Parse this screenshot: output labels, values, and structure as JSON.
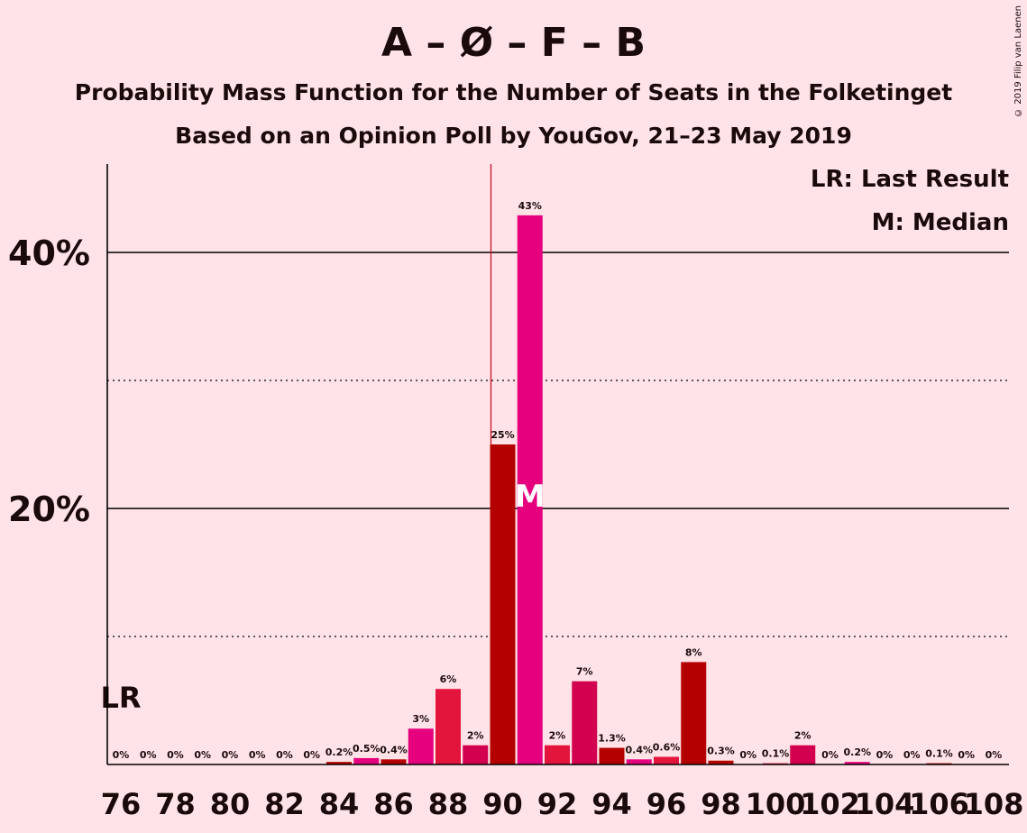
{
  "header": {
    "title": "A – Ø – F – B",
    "subtitle1": "Probability Mass Function for the Number of Seats in the Folketinget",
    "subtitle2": "Based on an Opinion Poll by YouGov, 21–23 May 2019",
    "copyright": "© 2019 Filip van Laenen"
  },
  "legend": {
    "lr": "LR: Last Result",
    "m": "M: Median"
  },
  "markers": {
    "last_result_label": "LR",
    "median_label": "M"
  },
  "colors": {
    "background": "#FFE3E6",
    "dark_red": "#B50000",
    "magenta": "#E6007E",
    "crimson": "#E4153D",
    "rose": "#D2004F",
    "axis": "#000000",
    "median_line": "#C8102E"
  },
  "chart_data": {
    "type": "bar",
    "title": "A – Ø – F – B",
    "xlabel": "",
    "ylabel": "",
    "ylim": [
      0,
      47
    ],
    "yticks": [
      20,
      40
    ],
    "ytick_labels": [
      "20%",
      "40%"
    ],
    "dotted_gridlines": [
      10,
      30
    ],
    "x_tick_labels": [
      "76",
      "78",
      "80",
      "82",
      "84",
      "86",
      "88",
      "90",
      "92",
      "94",
      "96",
      "98",
      "100",
      "102",
      "104",
      "106",
      "108"
    ],
    "x": [
      76,
      77,
      78,
      79,
      80,
      81,
      82,
      83,
      84,
      85,
      86,
      87,
      88,
      89,
      90,
      91,
      92,
      93,
      94,
      95,
      96,
      97,
      98,
      99,
      100,
      101,
      102,
      103,
      104,
      105,
      106,
      107,
      108
    ],
    "values": [
      0,
      0,
      0,
      0,
      0,
      0,
      0,
      0,
      0.2,
      0.5,
      0.4,
      2.8,
      5.9,
      1.5,
      25.0,
      42.9,
      1.5,
      6.5,
      1.3,
      0.4,
      0.6,
      8.0,
      0.3,
      0,
      0.1,
      1.5,
      0,
      0.2,
      0,
      0,
      0.1,
      0,
      0
    ],
    "labels": [
      "0%",
      "0%",
      "0%",
      "0%",
      "0%",
      "0%",
      "0%",
      "0%",
      "0.2%",
      "0.5%",
      "0.4%",
      "3%",
      "6%",
      "2%",
      "25%",
      "43%",
      "2%",
      "7%",
      "1.3%",
      "0.4%",
      "0.6%",
      "8%",
      "0.3%",
      "0%",
      "0.1%",
      "2%",
      "0%",
      "0.2%",
      "0%",
      "0%",
      "0.1%",
      "0%",
      "0%"
    ],
    "bar_colors": [
      "#B50000",
      "#E6007E",
      "#E4153D",
      "#D2004F",
      "#B50000",
      "#E6007E",
      "#E4153D",
      "#D2004F",
      "#B50000",
      "#E6007E",
      "#B50000",
      "#E6007E",
      "#E4153D",
      "#D2004F",
      "#B50000",
      "#E6007E",
      "#E4153D",
      "#D2004F",
      "#B50000",
      "#E6007E",
      "#E4153D",
      "#B50000",
      "#B50000",
      "#E6007E",
      "#E4153D",
      "#D2004F",
      "#B50000",
      "#E6007E",
      "#E4153D",
      "#D2004F",
      "#B50000",
      "#E6007E",
      "#E4153D"
    ],
    "last_result_seat": 76,
    "median_seat": 91,
    "majority_line_seat": 90
  }
}
